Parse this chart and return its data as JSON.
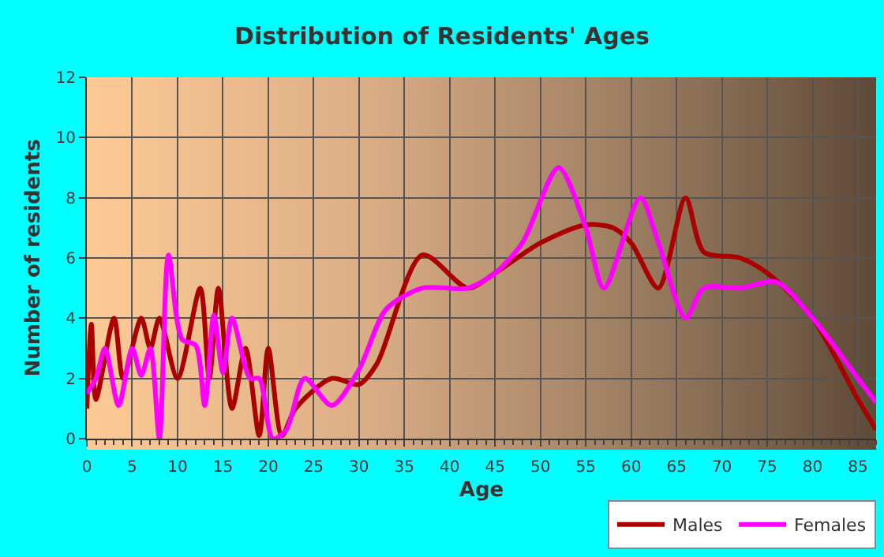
{
  "chart_data": {
    "type": "line",
    "title": "Distribution of Residents' Ages",
    "xlabel": "Age",
    "ylabel": "Number of residents",
    "xlim": [
      0,
      87
    ],
    "xticks": [
      0,
      5,
      10,
      15,
      20,
      25,
      30,
      35,
      40,
      45,
      50,
      55,
      60,
      65,
      70,
      75,
      80,
      85
    ],
    "ylim": [
      0,
      12
    ],
    "yticks": [
      0,
      2,
      4,
      6,
      8,
      10,
      12
    ],
    "grid": true,
    "legend": "bottom right",
    "series": [
      {
        "name": "Males",
        "color": "#aa0000",
        "x": [
          0,
          0.5,
          1,
          3,
          4,
          6,
          7,
          8,
          10,
          12.5,
          13.5,
          14.5,
          16,
          17.5,
          19,
          20,
          21.5,
          23,
          27,
          30,
          32,
          37,
          42,
          45,
          50,
          55,
          58,
          60,
          63,
          66,
          68,
          72,
          75,
          80,
          85,
          87
        ],
        "values": [
          1,
          3.8,
          1.3,
          4,
          2,
          4,
          3,
          4,
          2,
          5,
          2,
          5,
          1,
          3,
          0.1,
          3,
          0.1,
          1,
          2,
          1.8,
          2.5,
          6.1,
          5,
          5.5,
          6.5,
          7.1,
          7,
          6.5,
          5,
          8,
          6.2,
          6,
          5.5,
          4,
          1.3,
          0.3
        ]
      },
      {
        "name": "Females",
        "color": "#ff00ff",
        "x": [
          0,
          1,
          2,
          3.5,
          5,
          6,
          7,
          8,
          9,
          10.5,
          12,
          13,
          14,
          15,
          16,
          18,
          19,
          20.5,
          22,
          24,
          27,
          30,
          33,
          37,
          42,
          45,
          48,
          52,
          55,
          57,
          61,
          63,
          66,
          68,
          72,
          76,
          80,
          85,
          87
        ],
        "values": [
          1.5,
          2,
          3,
          1.1,
          3,
          2.1,
          3,
          0,
          6.1,
          3.3,
          3.1,
          1.1,
          4.1,
          2.2,
          4,
          2,
          2,
          0,
          0.3,
          2,
          1.1,
          2.3,
          4.3,
          5,
          5,
          5.5,
          6.5,
          9,
          7,
          5,
          8,
          6.5,
          4,
          5,
          5,
          5.2,
          4,
          2,
          1.2
        ]
      }
    ]
  }
}
